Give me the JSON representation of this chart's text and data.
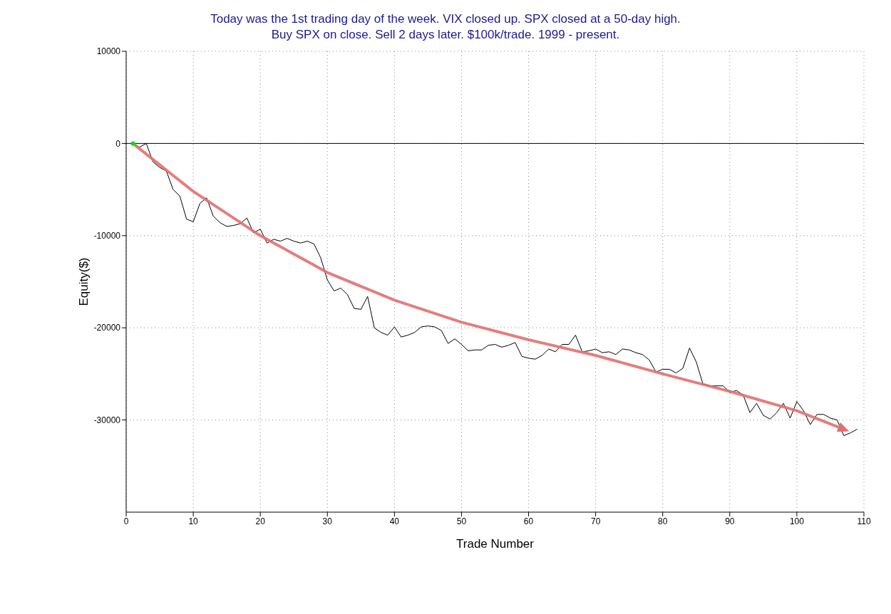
{
  "chart_data": {
    "type": "line",
    "title": "Today was the 1st trading day of the week. VIX closed up. SPX closed at a 50-day high.\nBuy SPX on close. Sell 2 days later. $100k/trade. 1999 - present.",
    "xlabel": "Trade Number",
    "ylabel": "Equity($)",
    "x": [
      1,
      2,
      3,
      4,
      5,
      6,
      7,
      8,
      9,
      10,
      11,
      12,
      13,
      14,
      15,
      16,
      17,
      18,
      19,
      20,
      21,
      22,
      23,
      24,
      25,
      26,
      27,
      28,
      29,
      30,
      31,
      32,
      33,
      34,
      35,
      36,
      37,
      38,
      39,
      40,
      41,
      42,
      43,
      44,
      45,
      46,
      47,
      48,
      49,
      50,
      51,
      52,
      53,
      54,
      55,
      56,
      57,
      58,
      59,
      60,
      61,
      62,
      63,
      64,
      65,
      66,
      67,
      68,
      69,
      70,
      71,
      72,
      73,
      74,
      75,
      76,
      77,
      78,
      79,
      80,
      81,
      82,
      83,
      84,
      85,
      86,
      87,
      88,
      89,
      90,
      91,
      92,
      93,
      94,
      95,
      96,
      97,
      98,
      99,
      100,
      101,
      102,
      103,
      104,
      105,
      106,
      107,
      108,
      109
    ],
    "series": [
      {
        "color": "#000000",
        "values": [
          0,
          -400,
          0,
          -2000,
          -2600,
          -3000,
          -5000,
          -5700,
          -8200,
          -8500,
          -6500,
          -5900,
          -7900,
          -8600,
          -9000,
          -8900,
          -8700,
          -8100,
          -9700,
          -9300,
          -10800,
          -10400,
          -10600,
          -10300,
          -10600,
          -10800,
          -10600,
          -10900,
          -12400,
          -14800,
          -16000,
          -15700,
          -16400,
          -17900,
          -18000,
          -16600,
          -20000,
          -20500,
          -20800,
          -19900,
          -21000,
          -20800,
          -20500,
          -19900,
          -19800,
          -19900,
          -20300,
          -21700,
          -21200,
          -21800,
          -22500,
          -22400,
          -22400,
          -21900,
          -21800,
          -22100,
          -21900,
          -21600,
          -23100,
          -23300,
          -23400,
          -23000,
          -22300,
          -22600,
          -21800,
          -21800,
          -20800,
          -22600,
          -22500,
          -22300,
          -22700,
          -22600,
          -22900,
          -22300,
          -22400,
          -22700,
          -22900,
          -23500,
          -24800,
          -24500,
          -24500,
          -24900,
          -24400,
          -22200,
          -23700,
          -26100,
          -26300,
          -26300,
          -26300,
          -27000,
          -26800,
          -27300,
          -29200,
          -28200,
          -29500,
          -29900,
          -29200,
          -28200,
          -29800,
          -28000,
          -29000,
          -30500,
          -29400,
          -29400,
          -29800,
          -30000,
          -31700,
          -31400,
          -31000
        ]
      },
      {
        "color": "#e07070",
        "x": [
          1,
          10,
          20,
          30,
          40,
          50,
          60,
          70,
          80,
          90,
          100,
          107
        ],
        "values": [
          0,
          -5200,
          -10000,
          -14000,
          -17000,
          -19400,
          -21300,
          -23000,
          -25000,
          -26900,
          -29000,
          -31000
        ]
      },
      {
        "type": "scatter",
        "color": "#00e000",
        "x": [
          1
        ],
        "values": [
          0
        ]
      }
    ],
    "xlim": [
      0,
      110
    ],
    "xticks": [
      0,
      10,
      20,
      30,
      40,
      50,
      60,
      70,
      80,
      90,
      100,
      110
    ],
    "ylim": [
      -40000,
      10000
    ],
    "yticks": [
      -30000,
      -20000,
      -10000,
      0,
      10000
    ],
    "ref_lines": [
      {
        "axis": "y",
        "value": 0,
        "color": "#000000"
      }
    ],
    "grid": true
  }
}
